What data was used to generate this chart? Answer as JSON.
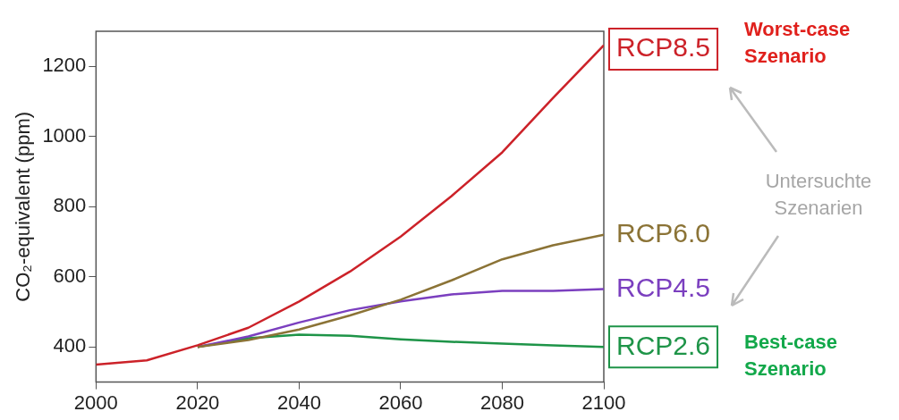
{
  "chart_data": {
    "type": "line",
    "ylabel": "CO₂-equivalent (ppm)",
    "x": [
      2000,
      2010,
      2020,
      2030,
      2040,
      2050,
      2060,
      2070,
      2080,
      2090,
      2100
    ],
    "xlim": [
      2000,
      2100
    ],
    "xticks": [
      2000,
      2020,
      2040,
      2060,
      2080,
      2100
    ],
    "ylim": [
      300,
      1300
    ],
    "yticks": [
      400,
      600,
      800,
      1000,
      1200
    ],
    "grid": false,
    "legend": false,
    "marker": "none",
    "line_style": "solid",
    "series": [
      {
        "name": "RCP8.5",
        "color": "#cc2229",
        "values": [
          350,
          362,
          405,
          455,
          530,
          615,
          715,
          830,
          955,
          1110,
          1260
        ]
      },
      {
        "name": "RCP6.0",
        "color": "#8b7336",
        "values": [
          null,
          null,
          400,
          420,
          450,
          490,
          535,
          590,
          650,
          690,
          720
        ]
      },
      {
        "name": "RCP4.5",
        "color": "#7b3fbf",
        "values": [
          null,
          null,
          400,
          430,
          470,
          505,
          530,
          550,
          560,
          560,
          565
        ]
      },
      {
        "name": "RCP2.6",
        "color": "#1e9448",
        "values": [
          null,
          null,
          400,
          425,
          435,
          432,
          422,
          415,
          410,
          405,
          400
        ]
      }
    ],
    "annotations": [
      "Worst-case Szenario",
      "Untersuchte Szenarien",
      "Best-case Szenario"
    ]
  }
}
